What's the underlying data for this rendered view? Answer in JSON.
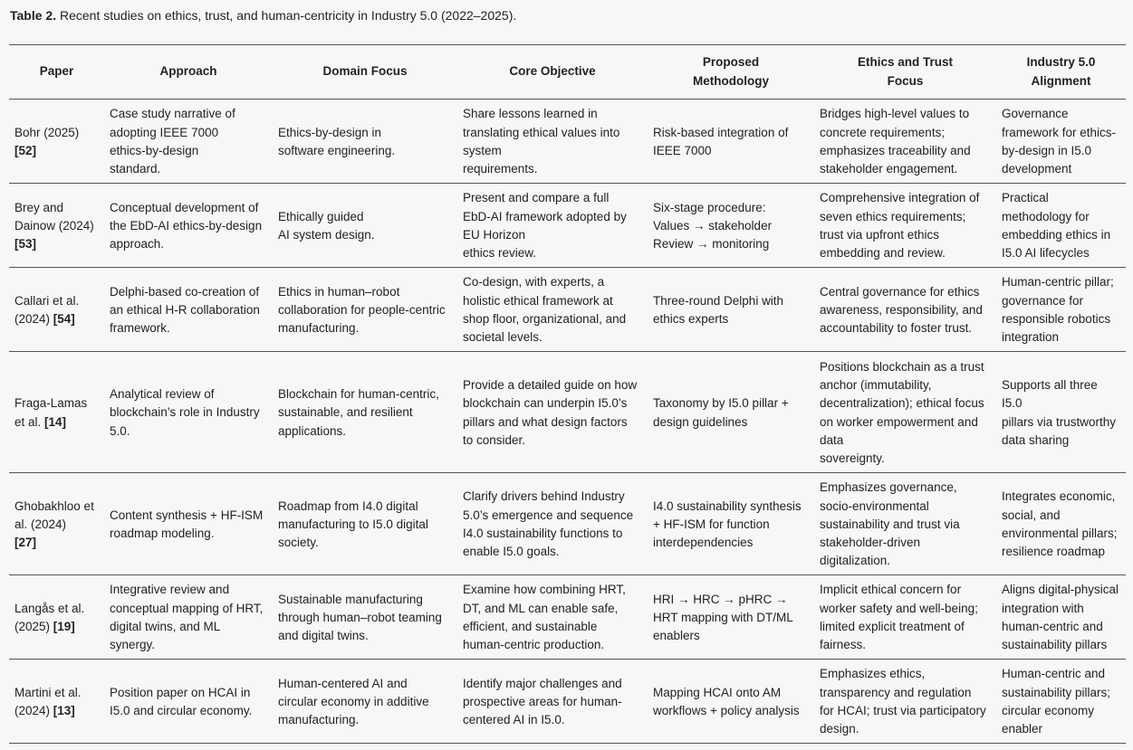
{
  "caption": {
    "label": "Table 2.",
    "text": " Recent studies on ethics, trust, and human-centricity in Industry 5.0 (2022–2025)."
  },
  "table": {
    "headers": [
      "Paper",
      "Approach",
      "Domain Focus",
      "Core Objective",
      "Proposed\nMethodology",
      "Ethics and Trust\nFocus",
      "Industry 5.0\nAlignment"
    ],
    "rows": [
      {
        "paper": "Bohr (2025)\n",
        "ref": "[52]",
        "approach": "Case study narrative of\nadopting IEEE 7000\nethics-by-design\nstandard.",
        "domain": "Ethics-by-design in\nsoftware engineering.",
        "objective": "Share lessons learned in\ntranslating ethical values into\nsystem\nrequirements.",
        "methodology": "Risk-based integration of\nIEEE 7000",
        "ethics": "Bridges high-level values to\nconcrete requirements;\nemphasizes traceability and\nstakeholder engagement.",
        "alignment": "Governance\nframework for ethics-\nby-design in I5.0\ndevelopment"
      },
      {
        "paper": "Brey and\nDainow (2024)\n",
        "ref": "[53]",
        "approach": "Conceptual development of\nthe EbD-AI ethics-by-design\napproach.",
        "domain": "Ethically guided\nAI system design.",
        "objective": "Present and compare a full\nEbD-AI framework adopted by\nEU Horizon\nethics review.",
        "methodology": "Six-stage procedure:\nValues → stakeholder\nReview → monitoring",
        "ethics": "Comprehensive integration of\nseven ethics requirements;\ntrust via upfront ethics\nembedding and review.",
        "alignment": "Practical\nmethodology for\nembedding ethics in\nI5.0 AI lifecycles"
      },
      {
        "paper": "Callari et al.\n(2024) ",
        "ref": "[54]",
        "approach": "Delphi-based co-creation of\nan ethical H-R collaboration\nframework.",
        "domain": "Ethics in human–robot\ncollaboration for people-centric\nmanufacturing.",
        "objective": "Co-design, with experts, a\nholistic ethical framework at\nshop floor, organizational, and\nsocietal levels.",
        "methodology": "Three-round Delphi with\nethics experts",
        "ethics": "Central governance for ethics\nawareness, responsibility, and\naccountability to foster trust.",
        "alignment": "Human-centric pillar;\ngovernance for\nresponsible robotics\nintegration"
      },
      {
        "paper": "Fraga-Lamas\net al. ",
        "ref": "[14]",
        "approach": "Analytical review of\nblockchain’s role in Industry\n5.0.",
        "domain": "Blockchain for human-centric,\nsustainable, and resilient\napplications.",
        "objective": "Provide a detailed guide on how\nblockchain can underpin I5.0’s\npillars and what design factors\nto consider.",
        "methodology": "Taxonomy by I5.0 pillar +\ndesign guidelines",
        "ethics": "Positions blockchain as a trust\nanchor (immutability,\ndecentralization); ethical focus\non worker empowerment and\ndata\nsovereignty.",
        "alignment": "Supports all three\nI5.0\npillars via trustworthy\ndata sharing"
      },
      {
        "paper": "Ghobakhloo et\nal. (2024)\n",
        "ref": "[27]",
        "approach": "Content synthesis + HF-ISM\nroadmap modeling.",
        "domain": "Roadmap from I4.0 digital\nmanufacturing to I5.0 digital\nsociety.",
        "objective": "Clarify drivers behind Industry\n5.0’s emergence and sequence\nI4.0 sustainability functions to\nenable I5.0 goals.",
        "methodology": "I4.0 sustainability synthesis\n+ HF-ISM for function\ninterdependencies",
        "ethics": "Emphasizes governance,\nsocio-environmental\nsustainability and trust via\nstakeholder-driven\ndigitalization.",
        "alignment": "Integrates economic,\nsocial, and\nenvironmental pillars;\nresilience roadmap"
      },
      {
        "paper": "Langås et al.\n(2025) ",
        "ref": "[19]",
        "approach": "Integrative review and\nconceptual mapping of HRT,\ndigital twins, and ML\nsynergy.",
        "domain": "Sustainable manufacturing\nthrough human–robot teaming\nand digital twins.",
        "objective": "Examine how combining HRT,\nDT, and ML can enable safe,\nefficient, and sustainable\nhuman-centric production.",
        "methodology": "HRI → HRC → pHRC →\nHRT mapping with DT/ML\nenablers",
        "ethics": "Implicit ethical concern for\nworker safety and well-being;\nlimited explicit treatment of\nfairness.",
        "alignment": "Aligns digital-physical\nintegration with\nhuman-centric and\nsustainability pillars"
      },
      {
        "paper": "Martini et al.\n(2024) ",
        "ref": "[13]",
        "approach": "Position paper on HCAI in\nI5.0 and circular economy.",
        "domain": "Human-centered AI and\ncircular economy in additive\nmanufacturing.",
        "objective": "Identify major challenges and\nprospective areas for human-\ncentered AI in I5.0.",
        "methodology": "Mapping HCAI onto AM\nworkflows + policy analysis",
        "ethics": "Emphasizes ethics,\ntransparency and regulation\nfor HCAI; trust via participatory\ndesign.",
        "alignment": "Human-centric and\nsustainability pillars;\ncircular economy\nenabler"
      }
    ]
  }
}
